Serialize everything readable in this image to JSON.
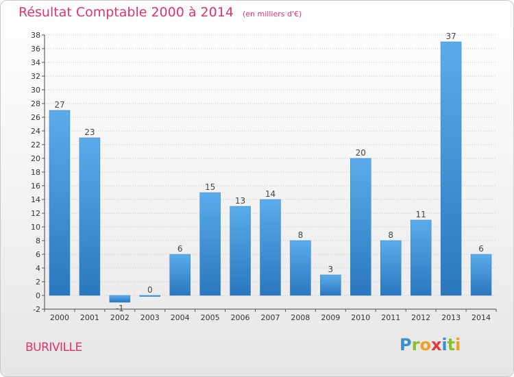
{
  "title": "Résultat Comptable 2000 à 2014",
  "subtitle": "(en milliers d'€)",
  "place": "BURIVILLE",
  "logo": {
    "text": "Proxiti",
    "letters": [
      {
        "ch": "P",
        "color": "#3a8fd0"
      },
      {
        "ch": "r",
        "color": "#8bbf2c"
      },
      {
        "ch": "o",
        "color": "#f0a01e"
      },
      {
        "ch": "x",
        "color": "#e23a3a"
      },
      {
        "ch": "i",
        "color": "#3a8fd0"
      },
      {
        "ch": "t",
        "color": "#8bbf2c"
      },
      {
        "ch": "i",
        "color": "#f0a01e"
      }
    ]
  },
  "colors": {
    "bar": "#4a9fe0",
    "bar_dark": "#2a79bf",
    "title": "#e0336e",
    "grid": "#bcbcbc"
  },
  "chart_data": {
    "type": "bar",
    "title": "Résultat Comptable 2000 à 2014",
    "subtitle": "(en milliers d'€)",
    "categories": [
      "2000",
      "2001",
      "2002",
      "2003",
      "2004",
      "2005",
      "2006",
      "2007",
      "2008",
      "2009",
      "2010",
      "2011",
      "2012",
      "2013",
      "2014"
    ],
    "values": [
      27,
      23,
      -1,
      0,
      6,
      15,
      13,
      14,
      8,
      3,
      20,
      8,
      11,
      37,
      6
    ],
    "value_labels": [
      "27",
      "23",
      "-1",
      "0",
      "6",
      "15",
      "13",
      "14",
      "8",
      "3",
      "20",
      "8",
      "11",
      "37",
      "6"
    ],
    "yticks": [
      "-2",
      "0",
      "2",
      "4",
      "6",
      "8",
      "10",
      "12",
      "14",
      "16",
      "18",
      "20",
      "22",
      "24",
      "26",
      "28",
      "30",
      "32",
      "34",
      "36",
      "38"
    ],
    "ylim": [
      -2,
      38
    ],
    "grid": true
  }
}
